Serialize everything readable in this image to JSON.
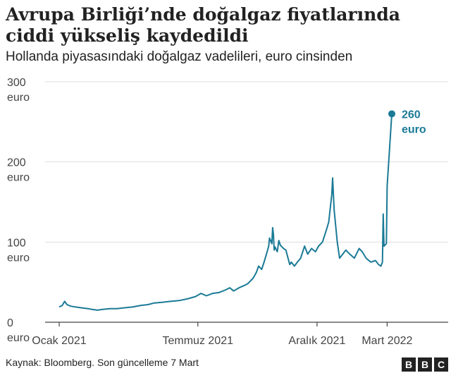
{
  "title": "Avrupa Birliği’nde doğalgaz fiyatlarında ciddi yükseliş kaydedildi",
  "subtitle": "Hollanda piyasasındaki doğalgaz vadelileri, euro cinsinden",
  "footer": "Kaynak: Bloomberg. Son güncelleme 7 Mart",
  "logo_letters": [
    "B",
    "B",
    "C"
  ],
  "chart_data": {
    "type": "line",
    "ylim": [
      0,
      300
    ],
    "y_ticks": [
      {
        "value": 0,
        "line1": "0",
        "line2": "euro"
      },
      {
        "value": 100,
        "line1": "100",
        "line2": "euro"
      },
      {
        "value": 200,
        "line1": "200",
        "line2": "euro"
      },
      {
        "value": 300,
        "line1": "300",
        "line2": "euro"
      }
    ],
    "x_ticks": [
      {
        "date": "2021-01-04",
        "label": "Ocak 2021"
      },
      {
        "date": "2021-07-01",
        "label": "Temmuz 2021"
      },
      {
        "date": "2021-12-01",
        "label": "Aralık 2021"
      },
      {
        "date": "2022-03-01",
        "label": "Mart 2022"
      }
    ],
    "end_label": {
      "value_text": "260",
      "unit_text": "euro"
    },
    "line_color": "#1a7a96",
    "grid": true,
    "series": [
      {
        "values": [
          [
            "2021-01-04",
            19
          ],
          [
            "2021-01-08",
            21
          ],
          [
            "2021-01-11",
            26
          ],
          [
            "2021-01-14",
            22
          ],
          [
            "2021-01-19",
            20
          ],
          [
            "2021-01-25",
            19
          ],
          [
            "2021-02-01",
            18
          ],
          [
            "2021-02-10",
            17
          ],
          [
            "2021-02-15",
            16
          ],
          [
            "2021-02-22",
            15
          ],
          [
            "2021-03-01",
            16
          ],
          [
            "2021-03-10",
            17
          ],
          [
            "2021-03-19",
            17
          ],
          [
            "2021-03-29",
            18
          ],
          [
            "2021-04-08",
            19
          ],
          [
            "2021-04-19",
            21
          ],
          [
            "2021-04-28",
            22
          ],
          [
            "2021-05-06",
            24
          ],
          [
            "2021-05-17",
            25
          ],
          [
            "2021-05-27",
            26
          ],
          [
            "2021-06-07",
            27
          ],
          [
            "2021-06-17",
            29
          ],
          [
            "2021-06-28",
            32
          ],
          [
            "2021-07-05",
            36
          ],
          [
            "2021-07-12",
            33
          ],
          [
            "2021-07-20",
            36
          ],
          [
            "2021-07-28",
            37
          ],
          [
            "2021-08-05",
            40
          ],
          [
            "2021-08-11",
            43
          ],
          [
            "2021-08-16",
            39
          ],
          [
            "2021-08-23",
            43
          ],
          [
            "2021-08-30",
            46
          ],
          [
            "2021-09-03",
            48
          ],
          [
            "2021-09-07",
            52
          ],
          [
            "2021-09-10",
            55
          ],
          [
            "2021-09-14",
            62
          ],
          [
            "2021-09-17",
            70
          ],
          [
            "2021-09-21",
            66
          ],
          [
            "2021-09-24",
            75
          ],
          [
            "2021-09-28",
            88
          ],
          [
            "2021-09-30",
            95
          ],
          [
            "2021-10-01",
            105
          ],
          [
            "2021-10-04",
            98
          ],
          [
            "2021-10-05",
            118
          ],
          [
            "2021-10-06",
            110
          ],
          [
            "2021-10-07",
            90
          ],
          [
            "2021-10-08",
            94
          ],
          [
            "2021-10-11",
            88
          ],
          [
            "2021-10-13",
            102
          ],
          [
            "2021-10-15",
            96
          ],
          [
            "2021-10-19",
            92
          ],
          [
            "2021-10-22",
            90
          ],
          [
            "2021-10-27",
            72
          ],
          [
            "2021-10-29",
            75
          ],
          [
            "2021-11-02",
            70
          ],
          [
            "2021-11-05",
            74
          ],
          [
            "2021-11-10",
            80
          ],
          [
            "2021-11-15",
            95
          ],
          [
            "2021-11-19",
            85
          ],
          [
            "2021-11-24",
            92
          ],
          [
            "2021-11-29",
            88
          ],
          [
            "2021-12-03",
            95
          ],
          [
            "2021-12-08",
            100
          ],
          [
            "2021-12-13",
            115
          ],
          [
            "2021-12-16",
            125
          ],
          [
            "2021-12-20",
            160
          ],
          [
            "2021-12-21",
            180
          ],
          [
            "2021-12-23",
            140
          ],
          [
            "2021-12-27",
            100
          ],
          [
            "2021-12-30",
            80
          ],
          [
            "2022-01-03",
            85
          ],
          [
            "2022-01-07",
            90
          ],
          [
            "2022-01-12",
            85
          ],
          [
            "2022-01-18",
            80
          ],
          [
            "2022-01-24",
            92
          ],
          [
            "2022-01-28",
            88
          ],
          [
            "2022-02-02",
            80
          ],
          [
            "2022-02-08",
            75
          ],
          [
            "2022-02-14",
            77
          ],
          [
            "2022-02-18",
            72
          ],
          [
            "2022-02-21",
            70
          ],
          [
            "2022-02-23",
            75
          ],
          [
            "2022-02-24",
            135
          ],
          [
            "2022-02-25",
            95
          ],
          [
            "2022-02-28",
            98
          ],
          [
            "2022-03-01",
            170
          ],
          [
            "2022-03-02",
            185
          ],
          [
            "2022-03-03",
            200
          ],
          [
            "2022-03-04",
            215
          ],
          [
            "2022-03-07",
            260
          ]
        ]
      }
    ]
  }
}
